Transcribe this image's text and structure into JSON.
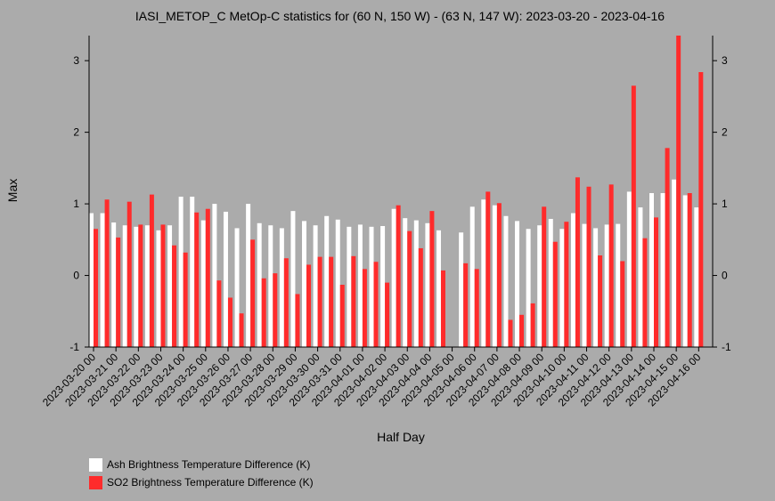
{
  "chart_data": {
    "type": "bar",
    "title": "IASI_METOP_C MetOp-C statistics for (60 N, 150 W) - (63 N, 147 W): 2023-03-20 - 2023-04-16",
    "xlabel": "Half Day",
    "ylabel": "Max",
    "ylim": [
      -1,
      3.35
    ],
    "yticks": [
      -1,
      0,
      1,
      2,
      3
    ],
    "grid": false,
    "legend_position": "bottom-left",
    "categories": [
      "2023-03-20 00",
      "2023-03-20 12",
      "2023-03-21 00",
      "2023-03-21 12",
      "2023-03-22 00",
      "2023-03-22 12",
      "2023-03-23 00",
      "2023-03-23 12",
      "2023-03-24 00",
      "2023-03-24 12",
      "2023-03-25 00",
      "2023-03-25 12",
      "2023-03-26 00",
      "2023-03-26 12",
      "2023-03-27 00",
      "2023-03-27 12",
      "2023-03-28 00",
      "2023-03-28 12",
      "2023-03-29 00",
      "2023-03-29 12",
      "2023-03-30 00",
      "2023-03-30 12",
      "2023-03-31 00",
      "2023-03-31 12",
      "2023-04-01 00",
      "2023-04-01 12",
      "2023-04-02 00",
      "2023-04-02 12",
      "2023-04-03 00",
      "2023-04-03 12",
      "2023-04-04 00",
      "2023-04-04 12",
      "2023-04-05 00",
      "2023-04-05 12",
      "2023-04-06 00",
      "2023-04-06 12",
      "2023-04-07 00",
      "2023-04-07 12",
      "2023-04-08 00",
      "2023-04-08 12",
      "2023-04-09 00",
      "2023-04-09 12",
      "2023-04-10 00",
      "2023-04-10 12",
      "2023-04-11 00",
      "2023-04-11 12",
      "2023-04-12 00",
      "2023-04-12 12",
      "2023-04-13 00",
      "2023-04-13 12",
      "2023-04-14 00",
      "2023-04-14 12",
      "2023-04-15 00",
      "2023-04-15 12",
      "2023-04-16 00"
    ],
    "tick_labels": [
      "2023-03-20 00",
      "2023-03-21 00",
      "2023-03-22 00",
      "2023-03-23 00",
      "2023-03-24 00",
      "2023-03-25 00",
      "2023-03-26 00",
      "2023-03-27 00",
      "2023-03-28 00",
      "2023-03-29 00",
      "2023-03-30 00",
      "2023-03-31 00",
      "2023-04-01 00",
      "2023-04-02 00",
      "2023-04-03 00",
      "2023-04-04 00",
      "2023-04-05 00",
      "2023-04-06 00",
      "2023-04-07 00",
      "2023-04-08 00",
      "2023-04-09 00",
      "2023-04-10 00",
      "2023-04-11 00",
      "2023-04-12 00",
      "2023-04-13 00",
      "2023-04-14 00",
      "2023-04-15 00",
      "2023-04-16 00"
    ],
    "series": [
      {
        "name": "Ash Brightness Temperature Difference (K)",
        "color": "#ffffff",
        "values": [
          0.87,
          0.87,
          0.74,
          0.7,
          0.68,
          0.7,
          0.63,
          0.7,
          1.1,
          1.1,
          0.77,
          1.0,
          0.89,
          0.66,
          1.0,
          0.73,
          0.7,
          0.66,
          0.9,
          0.76,
          0.7,
          0.83,
          0.78,
          0.68,
          0.71,
          0.68,
          0.69,
          0.93,
          0.8,
          0.77,
          0.73,
          0.63,
          null,
          0.6,
          0.96,
          1.06,
          0.98,
          0.83,
          0.76,
          0.65,
          0.7,
          0.79,
          0.65,
          0.87,
          0.72,
          0.66,
          0.71,
          0.72,
          1.17,
          0.95,
          1.15,
          1.15,
          1.34,
          1.12,
          0.95
        ]
      },
      {
        "name": "SO2 Brightness Temperature Difference (K)",
        "color": "#ff2b2b",
        "values": [
          0.65,
          1.06,
          0.53,
          1.03,
          0.71,
          1.13,
          0.71,
          0.42,
          0.32,
          0.88,
          0.93,
          -0.07,
          -0.31,
          -0.53,
          0.5,
          -0.04,
          0.03,
          0.24,
          -0.26,
          0.15,
          0.26,
          0.26,
          -0.13,
          0.27,
          0.09,
          0.19,
          -0.1,
          0.98,
          0.62,
          0.38,
          0.9,
          0.07,
          null,
          0.17,
          0.09,
          1.17,
          1.01,
          -0.62,
          -0.55,
          -0.39,
          0.96,
          0.47,
          0.75,
          1.37,
          1.24,
          0.28,
          1.27,
          0.2,
          2.65,
          0.52,
          0.81,
          1.78,
          3.35,
          1.15,
          2.84
        ]
      }
    ]
  }
}
